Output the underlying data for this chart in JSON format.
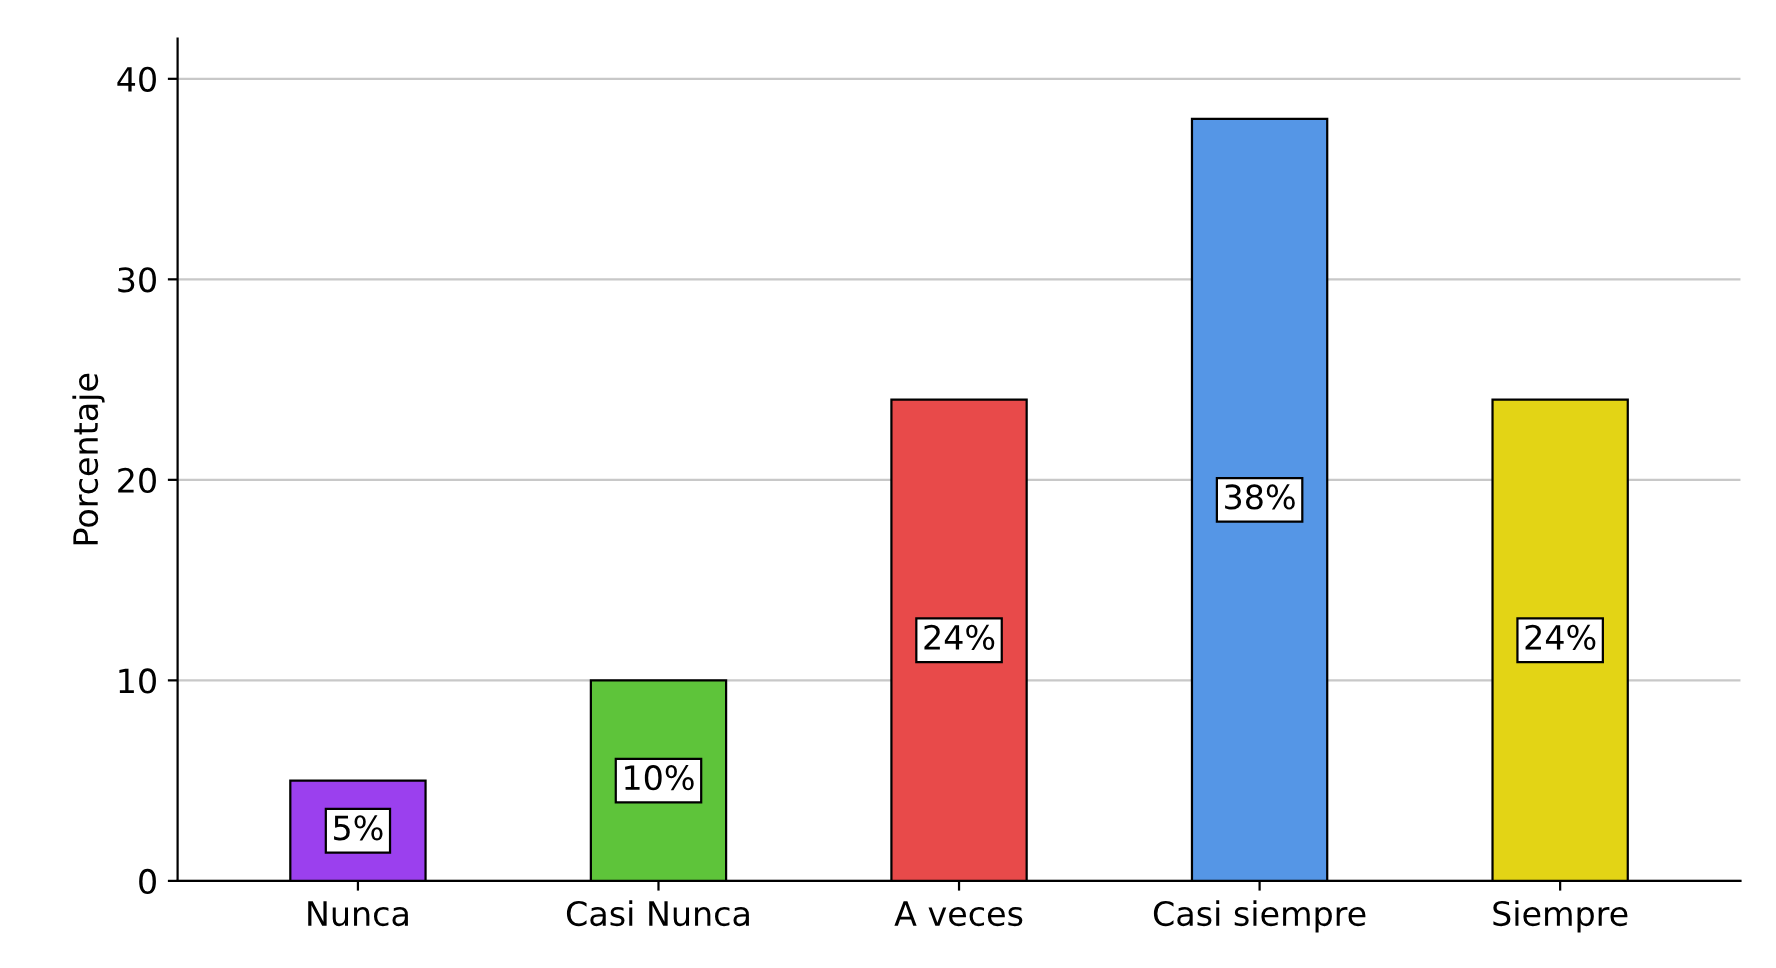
{
  "chart_data": {
    "type": "bar",
    "ylabel": "Porcentaje",
    "categories": [
      "Nunca",
      "Casi Nunca",
      "A veces",
      "Casi siempre",
      "Siempre"
    ],
    "values": [
      5,
      10,
      24,
      38,
      24
    ],
    "value_labels": [
      "5%",
      "10%",
      "24%",
      "38%",
      "24%"
    ],
    "colors": [
      "#9b40ee",
      "#5ec43a",
      "#e84a4a",
      "#5596e6",
      "#e3d415"
    ],
    "ylim": [
      0,
      42
    ],
    "yticks": [
      0,
      10,
      20,
      30,
      40
    ],
    "grid": "y"
  }
}
